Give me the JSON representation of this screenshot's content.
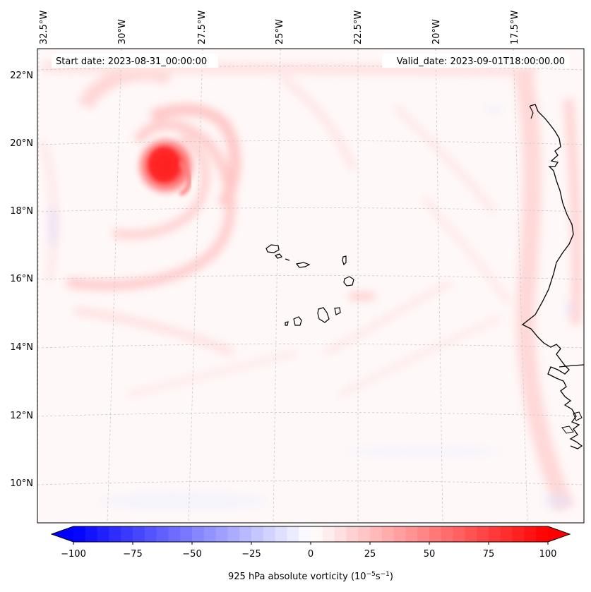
{
  "header": {
    "start_date": "Start date: 2023-08-31_00:00:00",
    "valid_date": "Valid_date: 2023-09-01T18:00:00.00"
  },
  "axes": {
    "lon_labels": [
      "32.5°W",
      "30°W",
      "27.5°W",
      "25°W",
      "22.5°W",
      "20°W",
      "17.5°W"
    ],
    "lat_labels": [
      "22°N",
      "20°N",
      "18°N",
      "16°N",
      "14°N",
      "12°N",
      "10°N"
    ]
  },
  "colorbar": {
    "tick_labels": [
      "−100",
      "−75",
      "−50",
      "−25",
      "0",
      "25",
      "50",
      "75",
      "100"
    ],
    "label_prefix": "925 hPa absolute vorticity (10",
    "label_exp1": "−5",
    "label_mid": "s",
    "label_exp2": "−1",
    "label_suffix": ")",
    "min": -100,
    "max": 100,
    "step": 5,
    "neg_color": "#0000ff",
    "pos_color": "#ff0000"
  },
  "colors": {
    "coastline": "#000000",
    "gridline": "#c8c8c8",
    "background": "#fff8f8"
  }
}
